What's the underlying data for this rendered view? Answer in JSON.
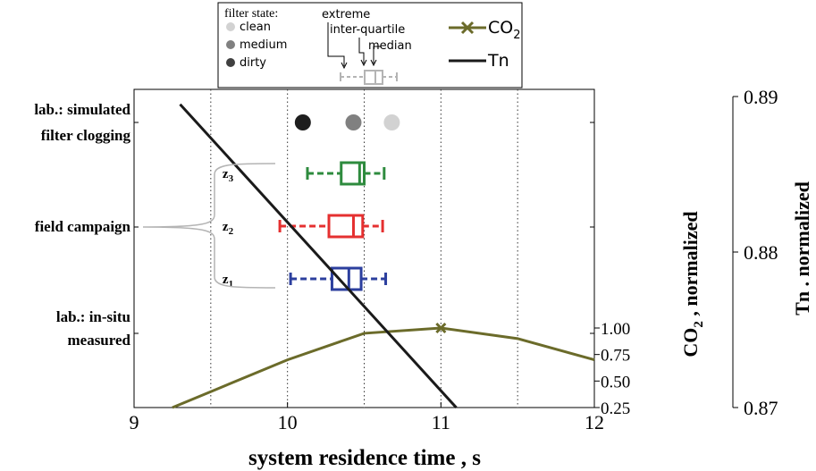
{
  "chart_data": {
    "type": "line",
    "xlabel": "system residence time , s",
    "x_ticks": [
      "9",
      "10",
      "11",
      "12"
    ],
    "xlim": [
      9,
      12
    ],
    "y_left_category_labels": [
      [
        "lab.: simulated",
        "filter clogging"
      ],
      [
        "field campaign"
      ],
      [
        "lab.: in-situ",
        "measured"
      ]
    ],
    "co2_axis": {
      "label": "CO",
      "label_sub": "2",
      "label_suffix": " , normalized",
      "ticks": [
        "1.00",
        "0.75",
        "0.50",
        "0.25"
      ],
      "lim": [
        0.25,
        1.0
      ]
    },
    "tn_axis": {
      "label": "Tn . normalized",
      "ticks": [
        "0.89",
        "0.88",
        "0.87"
      ],
      "lim": [
        0.87,
        0.89
      ]
    },
    "dotted_vlines": [
      9.5,
      10,
      10.5,
      11,
      11.5
    ],
    "series": [
      {
        "name": "CO2",
        "color": "#6b6b2a",
        "x": [
          9.25,
          9.5,
          10,
          10.5,
          11,
          11.5,
          12
        ],
        "y": [
          0.25,
          0.4,
          0.7,
          0.95,
          1.0,
          0.9,
          0.7
        ],
        "peak_marker": {
          "x": 11,
          "y": 1.0,
          "symbol": "x"
        }
      },
      {
        "name": "Tn",
        "color": "#1a1a1a",
        "x": [
          9.3,
          11.1
        ],
        "y": [
          0.8895,
          0.87
        ]
      }
    ],
    "filter_points": [
      {
        "state": "dirty",
        "x": 10.1,
        "color": "#1e1e1e"
      },
      {
        "state": "medium",
        "x": 10.43,
        "color": "#808080"
      },
      {
        "state": "clean",
        "x": 10.68,
        "color": "#d2d2d2"
      }
    ],
    "boxplots": [
      {
        "label": "z",
        "label_sub": "3",
        "color": "#2e8b3e",
        "whisker_low": 10.13,
        "q1": 10.35,
        "median": 10.47,
        "q3": 10.5,
        "whisker_high": 10.63
      },
      {
        "label": "z",
        "label_sub": "2",
        "color": "#e53030",
        "whisker_low": 9.95,
        "q1": 10.27,
        "median": 10.43,
        "q3": 10.49,
        "whisker_high": 10.62
      },
      {
        "label": "z",
        "label_sub": "1",
        "color": "#2c3f9e",
        "whisker_low": 10.02,
        "q1": 10.29,
        "median": 10.4,
        "q3": 10.48,
        "whisker_high": 10.64
      }
    ],
    "legend": {
      "filter_state_title": "filter state:",
      "filter_states": [
        {
          "label": "clean",
          "color": "#d2d2d2"
        },
        {
          "label": "medium",
          "color": "#808080"
        },
        {
          "label": "dirty",
          "color": "#404040"
        }
      ],
      "box_annotations": [
        "extreme",
        "inter-quartile",
        "median"
      ],
      "co2_label": "CO",
      "co2_sub": "2",
      "tn_label": "Tn",
      "placement": "top-center"
    }
  }
}
